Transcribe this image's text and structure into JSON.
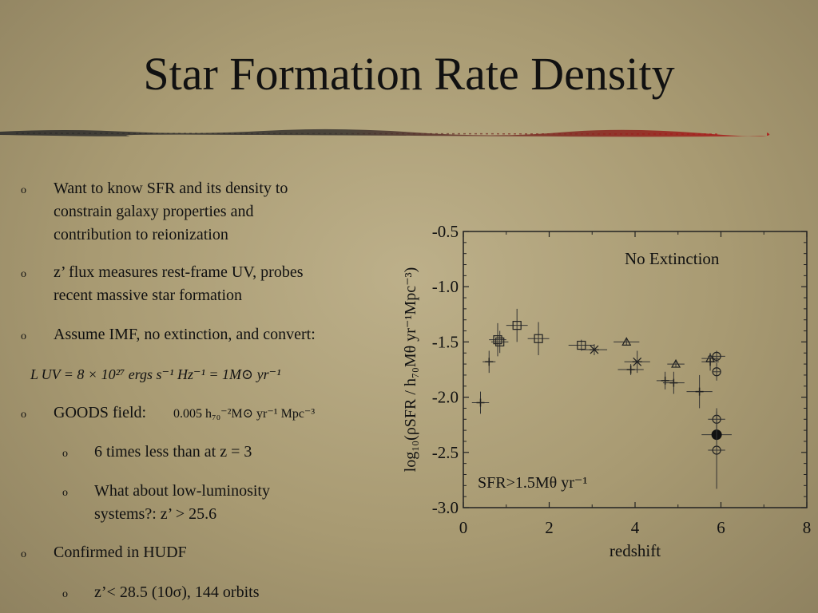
{
  "slide": {
    "title": "Star Formation Rate Density"
  },
  "bullets": [
    {
      "level": 1,
      "lines": [
        "Want to know SFR and its density to",
        "constrain galaxy properties and",
        "contribution to reionization"
      ]
    },
    {
      "level": 1,
      "lines": [
        "z’ flux measures rest-frame UV, probes",
        "recent massive star formation"
      ]
    },
    {
      "level": 1,
      "lines": [
        "Assume IMF, no extinction, and convert:"
      ]
    },
    {
      "level": 0,
      "lines": [
        "L UV = 8 × 10²⁷ ergs s⁻¹ Hz⁻¹ = 1M⊙ yr⁻¹"
      ]
    },
    {
      "level": 1,
      "lines": [
        "GOODS field:"
      ],
      "inline": "0.005 h₇₀⁻²M⊙ yr⁻¹ Mpc⁻³"
    },
    {
      "level": 2,
      "lines": [
        "6 times less than at z = 3"
      ]
    },
    {
      "level": 2,
      "lines": [
        "What about low-luminosity",
        "systems?: z’ > 25.6"
      ]
    },
    {
      "level": 1,
      "lines": [
        "Confirmed in HUDF"
      ]
    },
    {
      "level": 2,
      "lines": [
        "z’< 28.5 (10σ), 144 orbits"
      ]
    }
  ],
  "bullet_marker": "o",
  "chart_data": {
    "type": "scatter",
    "xlabel": "redshift",
    "ylabel": "log₁₀(ρSFR / h₇₀Mθ yr⁻¹Mpc⁻³)",
    "xlim": [
      0,
      8
    ],
    "ylim": [
      -3.0,
      -0.5
    ],
    "xticks": [
      0,
      2,
      4,
      6,
      8
    ],
    "yticks": [
      -0.5,
      -1.0,
      -1.5,
      -2.0,
      -2.5,
      -3.0
    ],
    "xtick_labels": [
      "0",
      "2",
      "4",
      "6",
      "8"
    ],
    "ytick_labels": [
      "-0.5",
      "-1.0",
      "-1.5",
      "-2.0",
      "-2.5",
      "-3.0"
    ],
    "annotations": [
      "No Extinction",
      "SFR>1.5Mθ yr⁻¹"
    ],
    "grid": false,
    "points": [
      {
        "marker": "plus",
        "x": 0.4,
        "y": -2.05,
        "xerr": 0.2,
        "yerr": 0.1
      },
      {
        "marker": "plus",
        "x": 0.6,
        "y": -1.68,
        "xerr": 0.15,
        "yerr": 0.1
      },
      {
        "marker": "square",
        "x": 0.8,
        "y": -1.48,
        "xerr": 0.2,
        "yerr": 0.15
      },
      {
        "marker": "square",
        "x": 0.85,
        "y": -1.5,
        "xerr": 0.2,
        "yerr": 0.1
      },
      {
        "marker": "square",
        "x": 1.25,
        "y": -1.35,
        "xerr": 0.25,
        "yerr": 0.15
      },
      {
        "marker": "square",
        "x": 1.75,
        "y": -1.47,
        "xerr": 0.25,
        "yerr": 0.15
      },
      {
        "marker": "square",
        "x": 2.75,
        "y": -1.53,
        "xerr": 0.3,
        "yerr": 0.05
      },
      {
        "marker": "star",
        "x": 3.05,
        "y": -1.57,
        "xerr": 0.3,
        "yerr": 0.05
      },
      {
        "marker": "triangle",
        "x": 3.8,
        "y": -1.5,
        "xerr": 0.3,
        "yerr": 0.03
      },
      {
        "marker": "plus",
        "x": 3.9,
        "y": -1.75,
        "xerr": 0.3,
        "yerr": 0.05
      },
      {
        "marker": "star",
        "x": 4.05,
        "y": -1.68,
        "xerr": 0.3,
        "yerr": 0.1
      },
      {
        "marker": "triangle",
        "x": 4.95,
        "y": -1.7,
        "xerr": 0.2,
        "yerr": 0.03
      },
      {
        "marker": "plus",
        "x": 4.7,
        "y": -1.85,
        "xerr": 0.2,
        "yerr": 0.08
      },
      {
        "marker": "plus",
        "x": 4.9,
        "y": -1.87,
        "xerr": 0.25,
        "yerr": 0.1
      },
      {
        "marker": "plus",
        "x": 5.5,
        "y": -1.95,
        "xerr": 0.3,
        "yerr": 0.15
      },
      {
        "marker": "triangle",
        "x": 5.75,
        "y": -1.65,
        "xerr": 0.2,
        "yerr": 0.05
      },
      {
        "marker": "plus",
        "x": 5.75,
        "y": -1.68,
        "xerr": 0.2,
        "yerr": 0.08
      },
      {
        "marker": "circle",
        "x": 5.9,
        "y": -1.63,
        "xerr": 0.2,
        "yerr": 0.05
      },
      {
        "marker": "circle",
        "x": 5.9,
        "y": -1.77,
        "xerr": 0.1,
        "yerr": 0.08
      },
      {
        "marker": "circle",
        "x": 5.9,
        "y": -2.2,
        "xerr": 0.2,
        "yerr": 0.1
      },
      {
        "marker": "filled-circle",
        "x": 5.9,
        "y": -2.34,
        "xerr": 0.35,
        "yerr": 0.05
      },
      {
        "marker": "circle",
        "x": 5.9,
        "y": -2.48,
        "xerr": 0.2,
        "yerr": 0.35
      }
    ]
  },
  "colors": {
    "background": "#a89a72",
    "divider_dark": "#2a2a2a",
    "divider_red": "#b01818",
    "text": "#111111"
  }
}
